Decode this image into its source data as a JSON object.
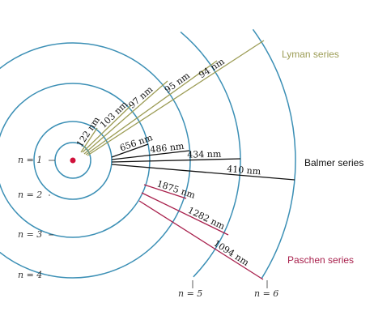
{
  "levels": [
    "n = 1",
    "n = 2",
    "n = 3",
    "n = 4",
    "n = 5",
    "n = 6"
  ],
  "series": [
    {
      "name": "Lyman series",
      "transitions": [
        "122 nm",
        "103 nm",
        "97 nm",
        "95 nm",
        "94 nm"
      ]
    },
    {
      "name": "Balmer series",
      "transitions": [
        "656 nm",
        "486 nm",
        "434 nm",
        "410 nm"
      ]
    },
    {
      "name": "Paschen series",
      "transitions": [
        "1875 nm",
        "1282 nm",
        "1094 nm"
      ]
    }
  ]
}
